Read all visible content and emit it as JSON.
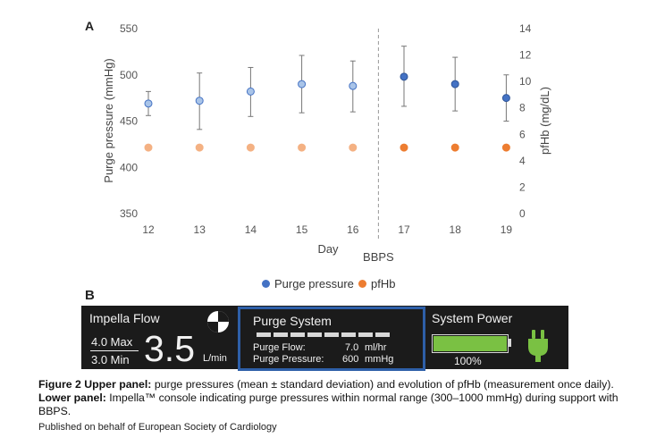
{
  "panel_a": {
    "letter": "A",
    "chart_data": {
      "type": "scatter",
      "xlabel": "Day",
      "x": [
        12,
        13,
        14,
        15,
        16,
        17,
        18,
        19
      ],
      "x_ticks": [
        "12",
        "13",
        "14",
        "15",
        "16",
        "17",
        "18",
        "19"
      ],
      "ylabel_left": "Purge pressure (mmHg)",
      "ylim_left": [
        350,
        550
      ],
      "yticks_left": [
        350,
        400,
        450,
        500,
        550
      ],
      "ylabel_right": "pfHb (mg/dL)",
      "ylim_right": [
        0,
        14
      ],
      "yticks_right": [
        0,
        2,
        4,
        6,
        8,
        10,
        12,
        14
      ],
      "grid": false,
      "divider_label": "BBPS",
      "divider_after_x": 16,
      "legend_position": "bottom",
      "series": [
        {
          "name": "Purge pressure",
          "axis": "left",
          "color": "#4472c4",
          "x": [
            12,
            13,
            14,
            15,
            16,
            17,
            18,
            19
          ],
          "values": [
            469,
            472,
            482,
            490,
            488,
            498,
            490,
            475
          ],
          "error_low": [
            456,
            441,
            455,
            459,
            460,
            466,
            461,
            450
          ],
          "error_high": [
            482,
            502,
            508,
            521,
            515,
            531,
            519,
            500
          ]
        },
        {
          "name": "pfHb",
          "axis": "right",
          "color": "#ed7d31",
          "x": [
            12,
            13,
            14,
            15,
            16,
            17,
            18,
            19
          ],
          "values": [
            5,
            5,
            5,
            5,
            5,
            5,
            5,
            5
          ]
        }
      ]
    }
  },
  "panel_b": {
    "letter": "B",
    "impella_flow": {
      "title": "Impella  Flow",
      "max": "4.0 Max",
      "min": "3.0 Min",
      "value": "3.5",
      "unit": "L/min"
    },
    "purge_system": {
      "title": "Purge System",
      "flow_label": "Purge Flow:",
      "flow_value": "7.0",
      "flow_unit": "ml/hr",
      "pressure_label": "Purge Pressure:",
      "pressure_value": "600",
      "pressure_unit": "mmHg",
      "highlight_color": "#2e5fa8"
    },
    "system_power": {
      "title": "System Power",
      "battery_pct": "100%",
      "battery_level": 1.0,
      "battery_color": "#7ac143",
      "plug_color": "#7ac143",
      "plug_icon": "power-plug-icon"
    }
  },
  "caption": {
    "label_upper": "Figure 2 Upper panel:",
    "text_upper": " purge pressures (mean ± standard deviation) and evolution of pfHb (measurement once daily). ",
    "label_lower": "Lower panel:",
    "text_lower": " Impella™ console indicating purge pressures within normal range (300–1000 mmHg) during support with BBPS."
  },
  "published": "Published on behalf of European Society of Cardiology"
}
